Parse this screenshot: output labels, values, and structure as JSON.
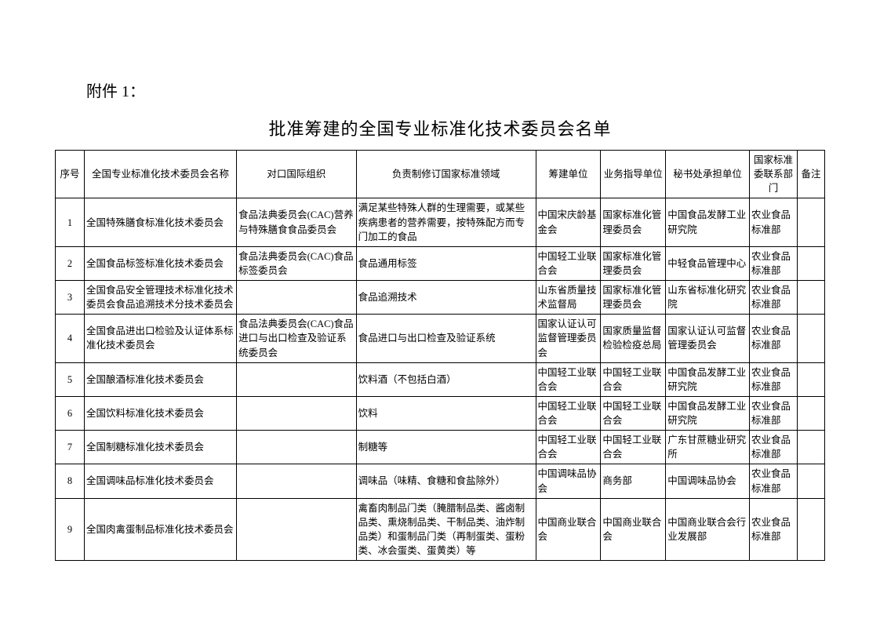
{
  "attachment_label": "附件 1：",
  "title": "批准筹建的全国专业标准化技术委员会名单",
  "table": {
    "columns": [
      "序号",
      "全国专业标准化技术委员会名称",
      "对口国际组织",
      "负责制修订国家标准领域",
      "筹建单位",
      "业务指导单位",
      "秘书处承担单位",
      "国家标准委联系部门",
      "备注"
    ],
    "rows": [
      {
        "idx": "1",
        "name": "全国特殊膳食标准化技术委员会",
        "org": "食品法典委员会(CAC)营养与特殊膳食食品委员会",
        "domain": "满足某些特殊人群的生理需要，或某些疾病患者的营养需要，按特殊配方而专门加工的食品",
        "unit": "中国宋庆龄基金会",
        "guide": "国家标准化管理委员会",
        "sec": "中国食品发酵工业研究院",
        "dept": "农业食品标准部",
        "note": ""
      },
      {
        "idx": "2",
        "name": "全国食品标签标准化技术委员会",
        "org": "食品法典委员会(CAC)食品标签委员会",
        "domain": "食品通用标签",
        "unit": "中国轻工业联合会",
        "guide": "国家标准化管理委员会",
        "sec": "中轻食品管理中心",
        "dept": "农业食品标准部",
        "note": ""
      },
      {
        "idx": "3",
        "name": "全国食品安全管理技术标准化技术委员会食品追溯技术分技术委员会",
        "org": "",
        "domain": "食品追溯技术",
        "unit": "山东省质量技术监督局",
        "guide": "国家标准化管理委员会",
        "sec": "山东省标准化研究院",
        "dept": "农业食品标准部",
        "note": ""
      },
      {
        "idx": "4",
        "name": "全国食品进出口检验及认证体系标准化技术委员会",
        "org": "食品法典委员会(CAC)食品进口与出口检查及验证系统委员会",
        "domain": "食品进口与出口检查及验证系统",
        "unit": "国家认证认可监督管理委员会",
        "guide": "国家质量监督检验检疫总局",
        "sec": "国家认证认可监督管理委员会",
        "dept": "农业食品标准部",
        "note": ""
      },
      {
        "idx": "5",
        "name": "全国酿酒标准化技术委员会",
        "org": "",
        "domain": "饮料酒（不包括白酒）",
        "unit": "中国轻工业联合会",
        "guide": "中国轻工业联合会",
        "sec": "中国食品发酵工业研究院",
        "dept": "农业食品标准部",
        "note": ""
      },
      {
        "idx": "6",
        "name": "全国饮料标准化技术委员会",
        "org": "",
        "domain": "饮料",
        "unit": "中国轻工业联合会",
        "guide": "中国轻工业联合会",
        "sec": "中国食品发酵工业研究院",
        "dept": "农业食品标准部",
        "note": ""
      },
      {
        "idx": "7",
        "name": "全国制糖标准化技术委员会",
        "org": "",
        "domain": "制糖等",
        "unit": "中国轻工业联合会",
        "guide": "中国轻工业联合会",
        "sec": "广东甘蔗糖业研究所",
        "dept": "农业食品标准部",
        "note": ""
      },
      {
        "idx": "8",
        "name": "全国调味品标准化技术委员会",
        "org": "",
        "domain": "调味品（味精、食糖和食盐除外）",
        "unit": "中国调味品协会",
        "guide": "商务部",
        "sec": "中国调味品协会",
        "dept": "农业食品标准部",
        "note": ""
      },
      {
        "idx": "9",
        "name": "全国肉禽蛋制品标准化技术委员会",
        "org": "",
        "domain": "禽畜肉制品门类（腌腊制品类、酱卤制品类、熏烧制品类、干制品类、油炸制品类）和蛋制品门类（再制蛋类、蛋粉类、冰会蛋类、蛋黄类）等",
        "unit": "中国商业联合会",
        "guide": "中国商业联合会",
        "sec": "中国商业联合会行业发展部",
        "dept": "农业食品标准部",
        "note": ""
      }
    ]
  }
}
